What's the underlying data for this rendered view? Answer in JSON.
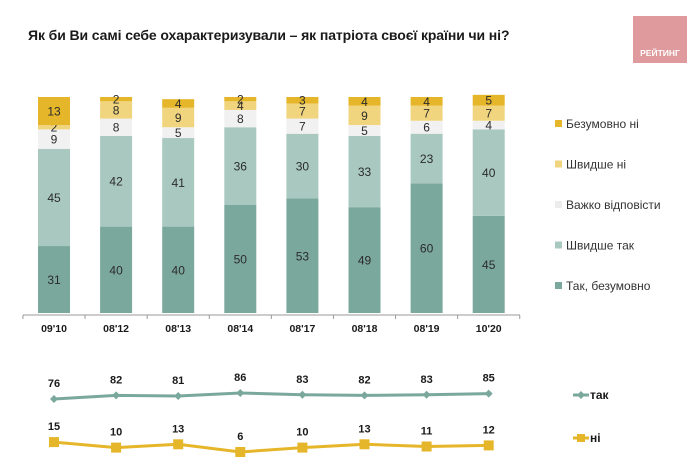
{
  "header": {
    "title": "Як  би Ви самі себе охарактеризували – як патріота своєї країни чи ні?",
    "logo_text": "РЕЙТИНГ"
  },
  "chart_data": [
    {
      "type": "bar",
      "stacked": true,
      "title": "Як  би Ви самі себе охарактеризували – як патріота своєї країни чи ні?",
      "categories": [
        "09'10",
        "08'12",
        "08'13",
        "08'14",
        "08'17",
        "08'18",
        "08'19",
        "10'20"
      ],
      "ylim": [
        0,
        100
      ],
      "grid": false,
      "legend_position": "right",
      "series": [
        {
          "name": "Так, безумовно",
          "color": "#7ba89c",
          "values": [
            31,
            40,
            40,
            50,
            53,
            49,
            60,
            45
          ]
        },
        {
          "name": "Швидше так",
          "color": "#a9c9c0",
          "values": [
            45,
            42,
            41,
            36,
            30,
            33,
            23,
            40
          ]
        },
        {
          "name": "Важко відповісти",
          "color": "#f1f1f1",
          "values": [
            9,
            8,
            5,
            8,
            7,
            5,
            6,
            4
          ]
        },
        {
          "name": "Швидше ні",
          "color": "#f1d57e",
          "values": [
            2,
            8,
            9,
            4,
            7,
            9,
            7,
            7
          ]
        },
        {
          "name": "Безумовно ні",
          "color": "#e6b62a",
          "values": [
            13,
            2,
            4,
            2,
            3,
            4,
            4,
            5
          ]
        }
      ],
      "legend_order": [
        "Безумовно ні",
        "Швидше ні",
        "Важко відповісти",
        "Швидше так",
        "Так, безумовно"
      ]
    },
    {
      "type": "line",
      "categories": [
        "09'10",
        "08'12",
        "08'13",
        "08'14",
        "08'17",
        "08'18",
        "08'19",
        "10'20"
      ],
      "legend_position": "right",
      "series": [
        {
          "name": "так",
          "color": "#7ba89c",
          "marker": "diamond",
          "values": [
            76,
            82,
            81,
            86,
            83,
            82,
            83,
            85
          ]
        },
        {
          "name": "ні",
          "color": "#e6b62a",
          "marker": "square",
          "values": [
            15,
            10,
            13,
            6,
            10,
            13,
            11,
            12
          ]
        }
      ]
    }
  ]
}
